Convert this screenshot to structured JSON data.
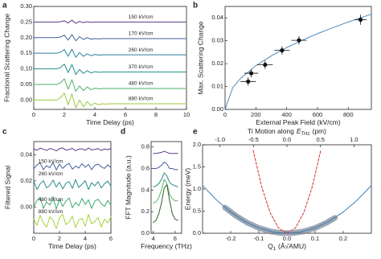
{
  "chart_data": [
    {
      "type": "line",
      "panel_label": "a",
      "xlabel": "Time Delay (ps)",
      "ylabel": "Fractional Scattering Change",
      "xlim": [
        0,
        10
      ],
      "xticks": [
        0,
        2,
        4,
        6,
        8,
        10
      ],
      "ylim": [
        -0.03,
        0.3
      ],
      "yticks": [
        {
          "value": 0,
          "label": "0.00"
        },
        {
          "value": 0.05,
          "label": "0.05"
        },
        {
          "value": 0.1,
          "label": "0.10"
        },
        {
          "value": 0.15,
          "label": "0.15"
        },
        {
          "value": 0.2,
          "label": "0.20"
        },
        {
          "value": 0.25,
          "label": "0.25"
        },
        {
          "value": 0.3,
          "label": "0.30"
        }
      ],
      "x": [
        0,
        1,
        1.5,
        1.75,
        2,
        2.25,
        2.5,
        2.75,
        3,
        3.25,
        3.5,
        3.75,
        4,
        4.25,
        4.5,
        4.75,
        5,
        5.25,
        5.5,
        6,
        7,
        8,
        9,
        10
      ],
      "series": [
        {
          "name": "150 kV/cm",
          "color": "#5b3c88",
          "values": [
            0.25,
            0.25,
            0.25,
            0.251,
            0.254,
            0.247,
            0.256,
            0.246,
            0.252,
            0.248,
            0.251,
            0.249,
            0.25,
            0.25,
            0.25,
            0.25,
            0.25,
            0.25,
            0.25,
            0.25,
            0.25,
            0.25,
            0.25,
            0.25
          ]
        },
        {
          "name": "170 kV/cm",
          "color": "#3f5f9e",
          "values": [
            0.2,
            0.2,
            0.2,
            0.202,
            0.208,
            0.192,
            0.21,
            0.19,
            0.203,
            0.194,
            0.2,
            0.195,
            0.197,
            0.196,
            0.197,
            0.197,
            0.197,
            0.197,
            0.197,
            0.197,
            0.197,
            0.197,
            0.197,
            0.197
          ]
        },
        {
          "name": "260 kV/cm",
          "color": "#2a7fa0",
          "values": [
            0.15,
            0.15,
            0.15,
            0.153,
            0.162,
            0.14,
            0.163,
            0.137,
            0.152,
            0.14,
            0.148,
            0.142,
            0.146,
            0.144,
            0.145,
            0.145,
            0.145,
            0.145,
            0.145,
            0.145,
            0.145,
            0.145,
            0.145,
            0.145
          ]
        },
        {
          "name": "370 kV/cm",
          "color": "#23908a",
          "values": [
            0.1,
            0.1,
            0.1,
            0.104,
            0.115,
            0.088,
            0.114,
            0.082,
            0.098,
            0.085,
            0.094,
            0.087,
            0.091,
            0.089,
            0.09,
            0.09,
            0.09,
            0.09,
            0.09,
            0.09,
            0.09,
            0.09,
            0.09,
            0.09
          ]
        },
        {
          "name": "480 kV/cm",
          "color": "#4fb06a",
          "values": [
            0.05,
            0.05,
            0.05,
            0.055,
            0.068,
            0.035,
            0.065,
            0.028,
            0.045,
            0.03,
            0.042,
            0.033,
            0.038,
            0.036,
            0.037,
            0.037,
            0.037,
            0.037,
            0.037,
            0.037,
            0.037,
            0.037,
            0.037,
            0.037
          ]
        },
        {
          "name": "880 kV/cm",
          "color": "#9ccb3b",
          "values": [
            0,
            0,
            0,
            0.008,
            0.022,
            -0.015,
            0.02,
            -0.025,
            0,
            -0.022,
            -0.005,
            -0.018,
            -0.01,
            -0.015,
            -0.012,
            -0.013,
            -0.012,
            -0.012,
            -0.012,
            -0.012,
            -0.012,
            -0.012,
            -0.012,
            -0.012
          ]
        }
      ]
    },
    {
      "type": "scatter",
      "panel_label": "b",
      "xlabel": "External Peak Field (kV/cm)",
      "ylabel": "Max. Scattering Change",
      "xlim": [
        0,
        950
      ],
      "xticks": [
        0,
        200,
        400,
        600,
        800
      ],
      "ylim": [
        0,
        0.045
      ],
      "yticks": [
        {
          "value": 0,
          "label": "0.00"
        },
        {
          "value": 0.01,
          "label": "0.01"
        },
        {
          "value": 0.02,
          "label": "0.02"
        },
        {
          "value": 0.03,
          "label": "0.03"
        },
        {
          "value": 0.04,
          "label": "0.04"
        }
      ],
      "series": [
        {
          "color": "#111111",
          "x": [
            150,
            170,
            260,
            370,
            480,
            880
          ],
          "values": [
            0.0122,
            0.0158,
            0.0195,
            0.0258,
            0.0302,
            0.0392
          ],
          "xerr": [
            50,
            45,
            50,
            50,
            50,
            40
          ],
          "yerr": [
            0.0018,
            0.0018,
            0.0018,
            0.0018,
            0.0018,
            0.0022
          ]
        }
      ],
      "fit": {
        "color": "#4a8ac4",
        "x": [
          0,
          50,
          100,
          200,
          300,
          400,
          500,
          600,
          700,
          800,
          900,
          950
        ],
        "values": [
          0,
          0.00955,
          0.0135,
          0.0191,
          0.0234,
          0.027,
          0.0302,
          0.0331,
          0.0357,
          0.0382,
          0.0405,
          0.0416
        ]
      }
    },
    {
      "type": "line",
      "panel_label": "c",
      "xlabel": "Time Delay (ps)",
      "ylabel": "Filtered Signal",
      "xlim": [
        0,
        6
      ],
      "xticks": [
        0,
        2,
        4,
        6
      ],
      "ylim": [
        -0.02,
        0.05
      ],
      "yticks": [
        {
          "value": 0,
          "label": "0.00"
        },
        {
          "value": 0.02,
          "label": "0.02"
        },
        {
          "value": 0.04,
          "label": "0.04"
        }
      ],
      "x": [
        0,
        0.25,
        0.5,
        0.75,
        1,
        1.25,
        1.5,
        1.75,
        2,
        2.25,
        2.5,
        2.75,
        3,
        3.25,
        3.5,
        3.75,
        4,
        4.25,
        4.5,
        4.75,
        5,
        5.25,
        5.5,
        5.75,
        6
      ],
      "series": [
        {
          "color": "#5b3c88",
          "values": [
            0.0444,
            0.0434,
            0.045,
            0.0442,
            0.0432,
            0.0447,
            0.0441,
            0.0429,
            0.0446,
            0.0451,
            0.0435,
            0.0439,
            0.0448,
            0.043,
            0.0442,
            0.0445,
            0.0433,
            0.0451,
            0.0436,
            0.044,
            0.0446,
            0.0432,
            0.0444,
            0.0438,
            0.0447
          ]
        },
        {
          "name": "150 kV/cm",
          "color": "#3f5f9e",
          "values": [
            0.0292,
            0.0322,
            0.0337,
            0.0286,
            0.0316,
            0.0301,
            0.034,
            0.0283,
            0.0328,
            0.0295,
            0.0319,
            0.0334,
            0.0289,
            0.0313,
            0.0298,
            0.0331,
            0.0304,
            0.0325,
            0.0286,
            0.0319,
            0.0328,
            0.0307,
            0.0295,
            0.0322,
            0.0301
          ]
        },
        {
          "name": "260 kV/cm",
          "color": "#2a8c90",
          "values": [
            0.0198,
            0.0134,
            0.0178,
            0.0202,
            0.0146,
            0.0166,
            0.0206,
            0.0154,
            0.019,
            0.0138,
            0.0182,
            0.0194,
            0.0142,
            0.021,
            0.015,
            0.0174,
            0.0202,
            0.0134,
            0.0186,
            0.0162,
            0.0194,
            0.0146,
            0.0178,
            0.0198,
            0.0158
          ]
        },
        {
          "name": "480 kV/cm",
          "color": "#3ea874",
          "values": [
            0,
            0.005,
            0.0075,
            -0.001,
            0.004,
            0.0015,
            0.008,
            -0.0015,
            0.006,
            0.0005,
            0.0045,
            0.007,
            -0.0005,
            0.0035,
            0.001,
            0.0065,
            0.002,
            0.0055,
            -0.001,
            0.0045,
            0.006,
            0.0025,
            0.0005,
            0.005,
            0.0015
          ]
        },
        {
          "name": "880 kV/cm",
          "color": "#a6d13b",
          "values": [
            -0.0092,
            -0.014,
            -0.0062,
            -0.0122,
            -0.0152,
            -0.0074,
            -0.0104,
            -0.0164,
            -0.008,
            -0.0056,
            -0.0134,
            -0.0116,
            -0.0068,
            -0.0158,
            -0.0098,
            -0.0086,
            -0.0146,
            -0.0056,
            -0.0128,
            -0.011,
            -0.008,
            -0.0152,
            -0.0092,
            -0.0122,
            -0.0074
          ]
        }
      ]
    },
    {
      "type": "line",
      "panel_label": "d",
      "xlabel": "Frequency (THz)",
      "ylabel": "FFT Magnitude (a.u.)",
      "xlim": [
        3.8,
        6.6
      ],
      "xticks": [
        4,
        6
      ],
      "ylim": [
        0,
        0.85
      ],
      "yticks": [
        {
          "value": 0,
          "label": "0.0"
        },
        0.2,
        0.4,
        0.6,
        0.8
      ],
      "x": [
        4,
        4.25,
        4.5,
        4.75,
        5,
        5.25,
        5.5,
        5.75,
        6,
        6.25
      ],
      "series": [
        {
          "color": "#5b3c88",
          "values": [
            0.74,
            0.74,
            0.745,
            0.75,
            0.76,
            0.75,
            0.74,
            0.74,
            0.74,
            0.74
          ]
        },
        {
          "color": "#3f5f9e",
          "values": [
            0.6,
            0.6,
            0.61,
            0.63,
            0.66,
            0.64,
            0.6,
            0.6,
            0.59,
            0.59
          ]
        },
        {
          "color": "#2a8c90",
          "values": [
            0.43,
            0.44,
            0.46,
            0.5,
            0.56,
            0.53,
            0.47,
            0.45,
            0.44,
            0.43
          ]
        },
        {
          "color": "#5fb46a",
          "values": [
            0.28,
            0.29,
            0.33,
            0.4,
            0.5,
            0.46,
            0.36,
            0.32,
            0.3,
            0.3
          ]
        },
        {
          "color": "#2f5e2a",
          "values": [
            0.1,
            0.12,
            0.18,
            0.28,
            0.42,
            0.45,
            0.3,
            0.18,
            0.13,
            0.12
          ]
        }
      ]
    },
    {
      "type": "line",
      "panel_label": "e",
      "xlabel": "Q",
      "xlabel_sub": "1",
      "xlabel_unit": "(Å√AMU)",
      "ylabel": "Energy (meV)",
      "x2label": "Ti Motion along",
      "x2label_var": "E",
      "x2label_sub": "THz",
      "x2label_unit": "(pm)",
      "xlim": [
        -0.3,
        0.3
      ],
      "xticks": [
        -0.2,
        -0.1,
        {
          "value": 0,
          "label": "0.0"
        },
        0.1,
        0.2
      ],
      "x2lim": [
        -1.26,
        1.26
      ],
      "x2ticks": [
        {
          "value": -1,
          "label": "-1.0"
        },
        -0.5,
        {
          "value": 0,
          "label": "0.0"
        },
        0.5,
        {
          "value": 1,
          "label": "1.0"
        }
      ],
      "ylim": [
        0,
        2
      ],
      "yticks": [
        {
          "value": 0,
          "label": "0.0"
        },
        0.5,
        {
          "value": 1,
          "label": "1.0"
        },
        1.5,
        {
          "value": 2,
          "label": "2.0"
        }
      ],
      "series": [
        {
          "color": "#7d8a99",
          "width": 7,
          "x": [
            -0.22,
            -0.18,
            -0.14,
            -0.1,
            -0.06,
            -0.02,
            0.02,
            0.06,
            0.1,
            0.14,
            0.17
          ],
          "values": [
            0.581,
            0.389,
            0.235,
            0.12,
            0.043,
            0.005,
            0.005,
            0.043,
            0.12,
            0.235,
            0.347
          ]
        },
        {
          "color": "#3d7fb8",
          "x": [
            -0.3,
            -0.25,
            -0.2,
            -0.15,
            -0.1,
            -0.05,
            0,
            0.05,
            0.1,
            0.15,
            0.2,
            0.25,
            0.3
          ],
          "values": [
            1.08,
            0.75,
            0.48,
            0.27,
            0.12,
            0.03,
            0,
            0.03,
            0.12,
            0.27,
            0.48,
            0.75,
            1.08
          ]
        },
        {
          "color": "#d62d2d",
          "dash": true,
          "x": [
            -0.12,
            -0.09,
            -0.06,
            -0.03,
            0,
            0.03,
            0.06,
            0.09,
            0.12
          ],
          "values": [
            1.872,
            1.053,
            0.468,
            0.117,
            0,
            0.117,
            0.468,
            1.053,
            1.872
          ]
        }
      ]
    }
  ]
}
